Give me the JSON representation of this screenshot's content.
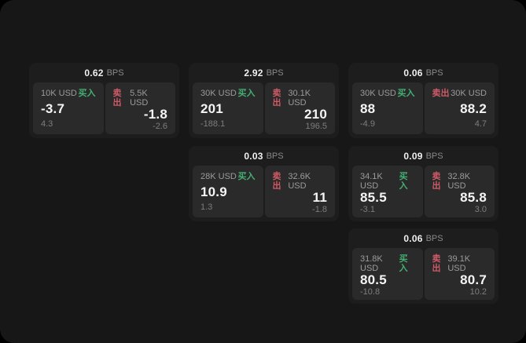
{
  "labels": {
    "bps_unit": "BPS",
    "buy": "买入",
    "sell": "卖出"
  },
  "colors": {
    "page_bg": "#171717",
    "card_bg": "#1d1d1e",
    "panel_bg": "#2a2a2b",
    "buy_green": "#43b072",
    "sell_red": "#cf5a67",
    "text_primary": "#f5f5f5",
    "text_muted": "#8a8a8a"
  },
  "cards": [
    {
      "bps": "0.62",
      "buy": {
        "notional": "10K USD",
        "price": "-3.7",
        "change": "4.3"
      },
      "sell": {
        "notional": "5.5K USD",
        "price": "-1.8",
        "change": "-2.6"
      }
    },
    {
      "bps": "2.92",
      "buy": {
        "notional": "30K USD",
        "price": "201",
        "change": "-188.1"
      },
      "sell": {
        "notional": "30.1K USD",
        "price": "210",
        "change": "196.5"
      }
    },
    {
      "bps": "0.06",
      "buy": {
        "notional": "30K USD",
        "price": "88",
        "change": "-4.9"
      },
      "sell": {
        "notional": "30K USD",
        "price": "88.2",
        "change": "4.7"
      }
    },
    {
      "bps": "0.03",
      "buy": {
        "notional": "28K USD",
        "price": "10.9",
        "change": "1.3"
      },
      "sell": {
        "notional": "32.6K USD",
        "price": "11",
        "change": "-1.8"
      }
    },
    {
      "bps": "0.09",
      "buy": {
        "notional": "34.1K USD",
        "price": "85.5",
        "change": "-3.1"
      },
      "sell": {
        "notional": "32.8K USD",
        "price": "85.8",
        "change": "3.0"
      }
    },
    {
      "bps": "0.06",
      "buy": {
        "notional": "31.8K USD",
        "price": "80.5",
        "change": "-10.8"
      },
      "sell": {
        "notional": "39.1K USD",
        "price": "80.7",
        "change": "10.2"
      }
    }
  ]
}
